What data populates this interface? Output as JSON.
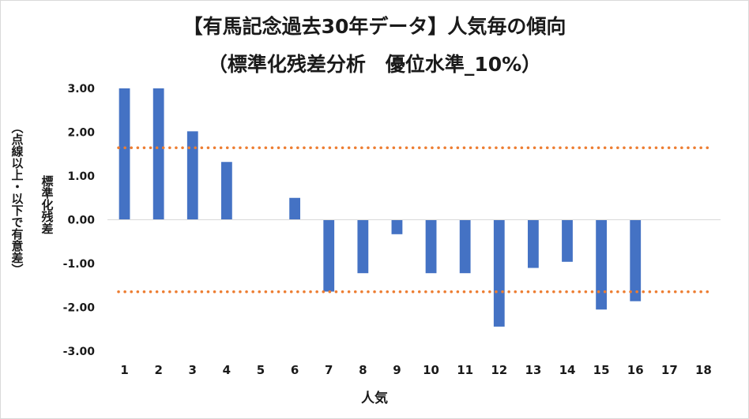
{
  "chart_data": {
    "type": "bar",
    "title": "【有馬記念過去30年データ】人気毎の傾向",
    "subtitle": "（標準化残差分析　優位水準_10%）",
    "xlabel": "人気",
    "ylabel": "標準化残差",
    "ylabel_note": "（点線以上・以下で有意差）",
    "categories": [
      "1",
      "2",
      "3",
      "4",
      "5",
      "6",
      "7",
      "8",
      "9",
      "10",
      "11",
      "12",
      "13",
      "14",
      "15",
      "16",
      "17",
      "18"
    ],
    "values": [
      3.0,
      3.0,
      2.02,
      1.32,
      0.0,
      0.5,
      -1.64,
      -1.22,
      -0.33,
      -1.22,
      -1.22,
      -2.44,
      -1.1,
      -0.96,
      -2.05,
      -1.86,
      0.0,
      0.0
    ],
    "ylim": [
      -3.0,
      3.0
    ],
    "yticks": [
      "3.00",
      "2.00",
      "1.00",
      "0.00",
      "-1.00",
      "-2.00",
      "-3.00"
    ],
    "threshold_lines": [
      1.645,
      -1.645
    ],
    "bar_color": "#4472c4",
    "threshold_color": "#ed7d31",
    "grid": false,
    "legend": "none"
  }
}
